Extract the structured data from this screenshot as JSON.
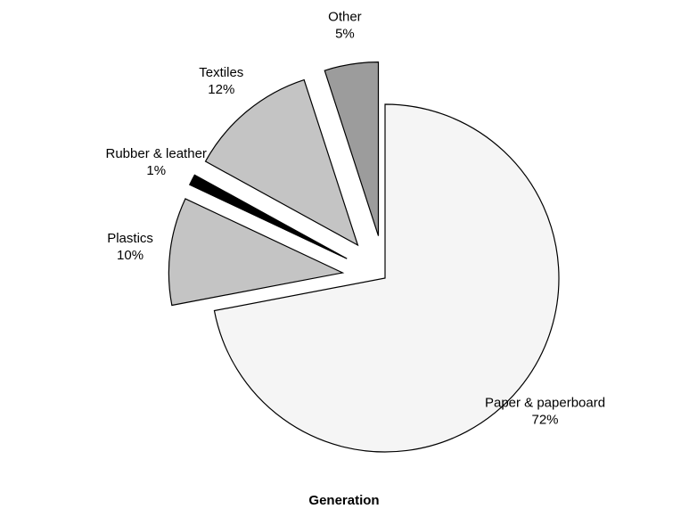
{
  "chart_data": {
    "type": "pie",
    "title": "Generation",
    "slices": [
      {
        "name": "Paper & paperboard",
        "value": 72,
        "label": "72%",
        "color": "#f5f5f5"
      },
      {
        "name": "Plastics",
        "value": 10,
        "label": "10%",
        "color": "#c4c4c4"
      },
      {
        "name": "Rubber & leather",
        "value": 1,
        "label": "1%",
        "color": "#000000"
      },
      {
        "name": "Textiles",
        "value": 12,
        "label": "12%",
        "color": "#c4c4c4"
      },
      {
        "name": "Other",
        "value": 5,
        "label": "5%",
        "color": "#9c9c9c"
      }
    ],
    "start_angle_deg": 0,
    "direction": "clockwise",
    "exploded": true,
    "legend": "none"
  }
}
